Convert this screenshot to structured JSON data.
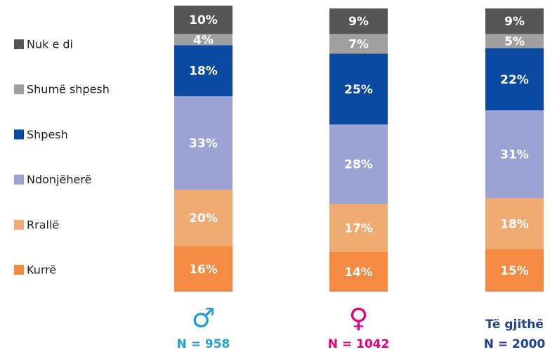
{
  "chart_data": {
    "type": "stacked_bar",
    "categories": [
      "♂",
      "♀",
      "Të gjithë"
    ],
    "category_colors": [
      "#1ea0d8",
      "#e4007c",
      "#1f3f8f"
    ],
    "sample_sizes": [
      "N = 958",
      "N = 1042",
      "N = 2000"
    ],
    "series": [
      {
        "name": "Kurrë",
        "color": "#f58a42",
        "values": [
          16,
          14,
          15
        ],
        "value_labels": [
          "16%",
          "14%",
          "15%"
        ]
      },
      {
        "name": "Rrallë",
        "color": "#f0ab72",
        "values": [
          20,
          17,
          18
        ],
        "value_labels": [
          "20%",
          "17%",
          "18%"
        ]
      },
      {
        "name": "Ndonjëherë",
        "color": "#9ba3d4",
        "values": [
          33,
          28,
          31
        ],
        "value_labels": [
          "33%",
          "28%",
          "31%"
        ]
      },
      {
        "name": "Shpesh",
        "color": "#0b4aa2",
        "values": [
          18,
          25,
          22
        ],
        "value_labels": [
          "18%",
          "25%",
          "22%"
        ]
      },
      {
        "name": "Shumë shpesh",
        "color": "#a0a0a0",
        "values": [
          4,
          7,
          5
        ],
        "value_labels": [
          "4%",
          "7%",
          "5%"
        ]
      },
      {
        "name": "Nuk e di",
        "color": "#555555",
        "values": [
          10,
          9,
          9
        ],
        "value_labels": [
          "10%",
          "9%",
          "9%"
        ]
      }
    ],
    "legend": "left"
  }
}
